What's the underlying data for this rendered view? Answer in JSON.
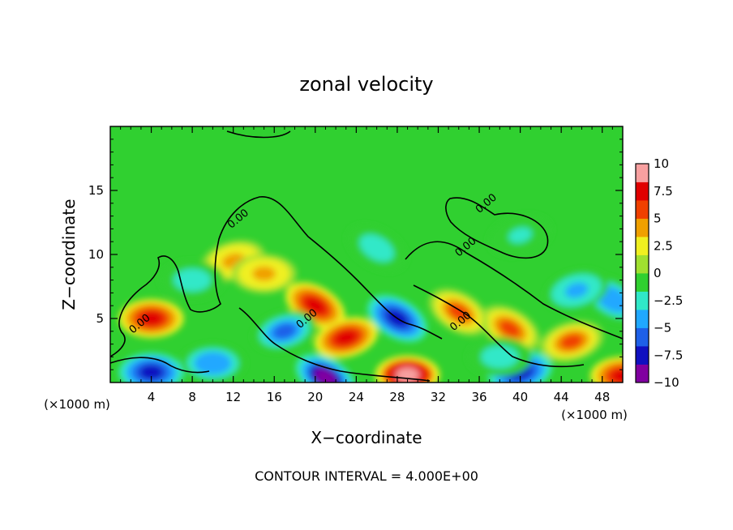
{
  "chart_data": {
    "type": "heatmap",
    "title": "zonal velocity",
    "xlabel": "X−coordinate",
    "ylabel": "Z−coordinate",
    "x_unit_label": "(×1000 m)",
    "x_unit_label_right": "(×1000 m)",
    "footer": "CONTOUR INTERVAL = 4.000E+00",
    "xlim": [
      0,
      50
    ],
    "ylim": [
      0,
      20
    ],
    "x_ticks": [
      4,
      8,
      12,
      16,
      20,
      24,
      28,
      32,
      36,
      40,
      44,
      48
    ],
    "y_ticks": [
      5,
      10,
      15
    ],
    "colorbar": {
      "ticks": [
        10,
        7.5,
        5,
        2.5,
        0,
        -2.5,
        -5,
        -7.5,
        -10
      ],
      "tick_labels": [
        "10",
        "7.5",
        "5",
        "2.5",
        "0",
        "−2.5",
        "−5",
        "−7.5",
        "−10"
      ],
      "range": [
        -10,
        10
      ],
      "colors": [
        "#8000a0",
        "#1010c0",
        "#1e60e8",
        "#20a8ff",
        "#30e8c8",
        "#30d030",
        "#a0e030",
        "#f0f020",
        "#f0a000",
        "#f04000",
        "#e00000",
        "#f8a0a0"
      ]
    },
    "contour_labels": [
      {
        "text": "0.00",
        "x": 11.8,
        "z": 12.0
      },
      {
        "text": "0.00",
        "x": 2.2,
        "z": 3.8
      },
      {
        "text": "0.00",
        "x": 18.5,
        "z": 4.2
      },
      {
        "text": "0.00",
        "x": 36.0,
        "z": 13.2
      },
      {
        "text": "0.00",
        "x": 34.0,
        "z": 9.8
      },
      {
        "text": "0.00",
        "x": 33.5,
        "z": 4.0
      }
    ],
    "features": [
      {
        "x": 4.0,
        "z": 5.0,
        "u": 8.0
      },
      {
        "x": 20.0,
        "z": 6.0,
        "u": 7.5
      },
      {
        "x": 23.0,
        "z": 3.5,
        "u": 8.0
      },
      {
        "x": 29.0,
        "z": 0.6,
        "u": 10.0
      },
      {
        "x": 39.0,
        "z": 4.2,
        "u": 6.5
      },
      {
        "x": 45.0,
        "z": 3.2,
        "u": 6.0
      },
      {
        "x": 50.0,
        "z": 0.5,
        "u": 8.0
      },
      {
        "x": 34.0,
        "z": 5.5,
        "u": 5.0
      },
      {
        "x": 12.0,
        "z": 9.5,
        "u": 4.0
      },
      {
        "x": 15.0,
        "z": 8.5,
        "u": 3.5
      },
      {
        "x": 28.0,
        "z": 5.0,
        "u": -8.0
      },
      {
        "x": 17.0,
        "z": 4.0,
        "u": -5.5
      },
      {
        "x": 4.0,
        "z": 0.8,
        "u": -8.0
      },
      {
        "x": 21.0,
        "z": 0.4,
        "u": -10.0
      },
      {
        "x": 40.0,
        "z": 0.8,
        "u": -7.5
      },
      {
        "x": 10.0,
        "z": 1.5,
        "u": -4.5
      },
      {
        "x": 49.0,
        "z": 6.5,
        "u": -5.0
      },
      {
        "x": 45.5,
        "z": 7.2,
        "u": -4.0
      },
      {
        "x": 8.0,
        "z": 8.0,
        "u": -3.0
      },
      {
        "x": 26.0,
        "z": 10.5,
        "u": -3.0
      },
      {
        "x": 40.0,
        "z": 11.5,
        "u": -2.0
      },
      {
        "x": 38.0,
        "z": 2.0,
        "u": -3.0
      }
    ]
  }
}
